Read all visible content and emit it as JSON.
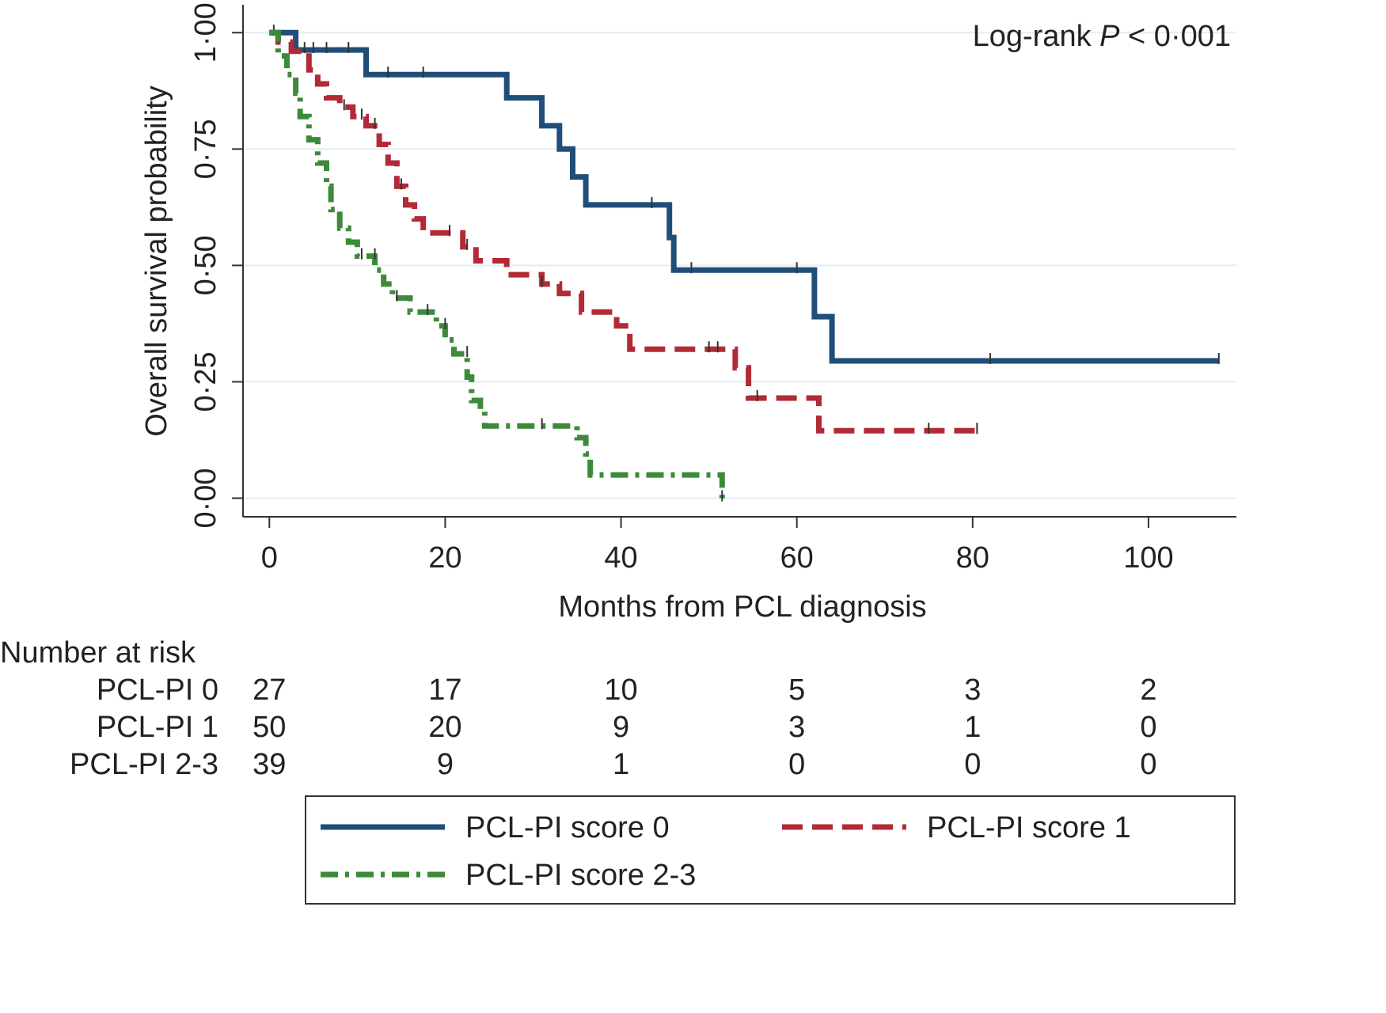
{
  "chart_data": {
    "type": "line",
    "subtype": "kaplan-meier",
    "xlabel": "Months from PCL diagnosis",
    "ylabel": "Overall survival probability",
    "annotation": {
      "prefix": "Log-rank ",
      "italic": "P",
      "suffix": " < 0·001"
    },
    "xlim": [
      -3,
      110
    ],
    "ylim": [
      -0.04,
      1.06
    ],
    "xticks": [
      0,
      20,
      40,
      60,
      80,
      100
    ],
    "yticks": [
      {
        "value": 0.0,
        "label": "0·00"
      },
      {
        "value": 0.25,
        "label": "0·25"
      },
      {
        "value": 0.5,
        "label": "0·50"
      },
      {
        "value": 0.75,
        "label": "0·75"
      },
      {
        "value": 1.0,
        "label": "1·00"
      }
    ],
    "grid": "horizontal",
    "series": [
      {
        "name": "PCL-PI score 0",
        "color": "#1f4e79",
        "dash": "solid",
        "steps": [
          [
            0,
            1.0
          ],
          [
            3,
            0.963
          ],
          [
            11,
            0.91
          ],
          [
            27,
            0.86
          ],
          [
            31,
            0.8
          ],
          [
            33,
            0.75
          ],
          [
            34.5,
            0.69
          ],
          [
            36,
            0.63
          ],
          [
            45.5,
            0.56
          ],
          [
            46,
            0.49
          ],
          [
            62,
            0.39
          ],
          [
            64,
            0.295
          ],
          [
            108,
            0.295
          ]
        ],
        "censored": [
          [
            0.5,
            1.0
          ],
          [
            4,
            0.963
          ],
          [
            5,
            0.963
          ],
          [
            6.5,
            0.963
          ],
          [
            9,
            0.963
          ],
          [
            13.5,
            0.91
          ],
          [
            17.5,
            0.91
          ],
          [
            43.5,
            0.63
          ],
          [
            48,
            0.49
          ],
          [
            60,
            0.49
          ],
          [
            82,
            0.295
          ],
          [
            108,
            0.295
          ]
        ]
      },
      {
        "name": "PCL-PI score 1",
        "color": "#b22a35",
        "dash": "dashed",
        "steps": [
          [
            0,
            1.0
          ],
          [
            1,
            0.98
          ],
          [
            2.5,
            0.96
          ],
          [
            4.5,
            0.92
          ],
          [
            5.5,
            0.89
          ],
          [
            6.5,
            0.86
          ],
          [
            8,
            0.84
          ],
          [
            9.5,
            0.82
          ],
          [
            11,
            0.8
          ],
          [
            12.5,
            0.76
          ],
          [
            13.5,
            0.72
          ],
          [
            14.5,
            0.67
          ],
          [
            15.5,
            0.63
          ],
          [
            16.5,
            0.6
          ],
          [
            17.5,
            0.57
          ],
          [
            22,
            0.54
          ],
          [
            23.5,
            0.51
          ],
          [
            27,
            0.48
          ],
          [
            31,
            0.46
          ],
          [
            33,
            0.44
          ],
          [
            35.5,
            0.4
          ],
          [
            39.5,
            0.37
          ],
          [
            41,
            0.32
          ],
          [
            53,
            0.28
          ],
          [
            54.5,
            0.215
          ],
          [
            62.5,
            0.145
          ],
          [
            80.5,
            0.145
          ]
        ],
        "censored": [
          [
            8.5,
            0.84
          ],
          [
            10.5,
            0.82
          ],
          [
            12,
            0.8
          ],
          [
            15,
            0.67
          ],
          [
            20.5,
            0.57
          ],
          [
            22.5,
            0.54
          ],
          [
            31,
            0.46
          ],
          [
            50,
            0.32
          ],
          [
            51,
            0.32
          ],
          [
            55.5,
            0.215
          ],
          [
            75,
            0.145
          ],
          [
            80.5,
            0.145
          ]
        ]
      },
      {
        "name": "PCL-PI score 2-3",
        "color": "#3c8a3a",
        "dash": "dashdot",
        "steps": [
          [
            0,
            1.0
          ],
          [
            1,
            0.95
          ],
          [
            2,
            0.91
          ],
          [
            3,
            0.87
          ],
          [
            3.5,
            0.82
          ],
          [
            4.5,
            0.77
          ],
          [
            5.5,
            0.72
          ],
          [
            6.5,
            0.67
          ],
          [
            7,
            0.62
          ],
          [
            8,
            0.58
          ],
          [
            9,
            0.55
          ],
          [
            10,
            0.52
          ],
          [
            12,
            0.49
          ],
          [
            13,
            0.46
          ],
          [
            14,
            0.43
          ],
          [
            16,
            0.4
          ],
          [
            19,
            0.37
          ],
          [
            20,
            0.34
          ],
          [
            21,
            0.31
          ],
          [
            22.5,
            0.26
          ],
          [
            23,
            0.21
          ],
          [
            24,
            0.19
          ],
          [
            24.5,
            0.155
          ],
          [
            35,
            0.13
          ],
          [
            36,
            0.095
          ],
          [
            36.5,
            0.05
          ],
          [
            51,
            0.05
          ],
          [
            51.5,
            0.0
          ]
        ],
        "censored": [
          [
            10.5,
            0.52
          ],
          [
            12,
            0.52
          ],
          [
            14.5,
            0.43
          ],
          [
            18,
            0.4
          ],
          [
            20,
            0.37
          ],
          [
            22.5,
            0.31
          ],
          [
            31,
            0.155
          ],
          [
            51.5,
            0.0
          ]
        ]
      }
    ],
    "risk_table": {
      "title": "Number at risk",
      "times": [
        0,
        20,
        40,
        60,
        80,
        100
      ],
      "rows": [
        {
          "label": "PCL-PI 0",
          "values": [
            "27",
            "17",
            "10",
            "5",
            "3",
            "2"
          ]
        },
        {
          "label": "PCL-PI 1",
          "values": [
            "50",
            "20",
            "9",
            "3",
            "1",
            "0"
          ]
        },
        {
          "label": "PCL-PI 2-3",
          "values": [
            "39",
            "9",
            "1",
            "0",
            "0",
            "0"
          ]
        }
      ]
    },
    "legend": {
      "placement": "bottom"
    }
  }
}
